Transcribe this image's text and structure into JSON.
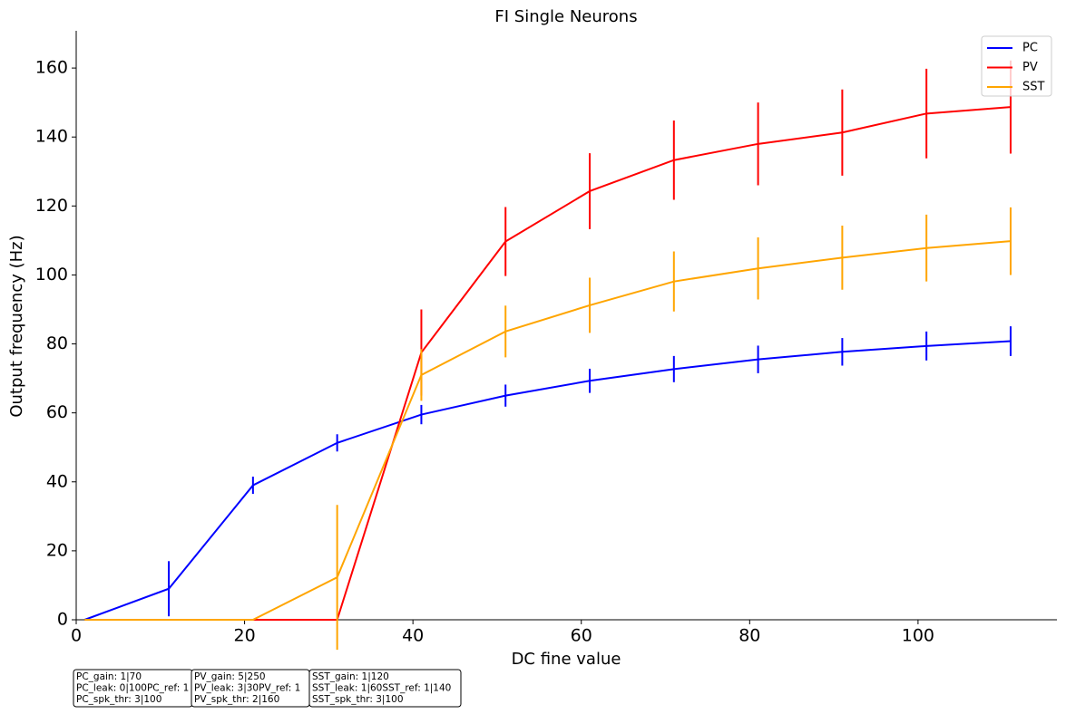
{
  "chart_data": {
    "type": "line",
    "title": "FI Single Neurons",
    "x_label": "DC fine value",
    "y_label": "Output frequency (Hz)",
    "x": [
      1,
      11,
      21,
      31,
      41,
      51,
      61,
      71,
      81,
      91,
      101,
      111
    ],
    "series": [
      {
        "name": "PC",
        "color": "#0000ff",
        "values": [
          0,
          9,
          39,
          51.3,
          59.5,
          65,
          69.3,
          72.7,
          75.5,
          77.7,
          79.4,
          80.8
        ],
        "errors": [
          0,
          8,
          2.5,
          2.5,
          2.8,
          3.2,
          3.5,
          3.8,
          4,
          4,
          4.2,
          4.3
        ]
      },
      {
        "name": "PV",
        "color": "#ff0000",
        "values": [
          0,
          0,
          0,
          0,
          77.5,
          109.7,
          124.3,
          133.3,
          138,
          141.3,
          146.8,
          148.7
        ],
        "errors": [
          0,
          0,
          0,
          0,
          12.5,
          10,
          11,
          11.5,
          12,
          12.5,
          13,
          13.5
        ]
      },
      {
        "name": "SST",
        "color": "#ffa500",
        "values": [
          0,
          0,
          0,
          12.3,
          71,
          83.6,
          91.2,
          98.1,
          101.9,
          105,
          107.8,
          109.8
        ],
        "errors": [
          0,
          0,
          0,
          21,
          7.5,
          7.5,
          8,
          8.7,
          9,
          9.3,
          9.7,
          9.8
        ]
      }
    ],
    "xlim": [
      0,
      116.5
    ],
    "xticks": [
      0,
      20,
      40,
      60,
      80,
      100
    ],
    "ylim": [
      0,
      170.8
    ],
    "yticks": [
      0,
      20,
      40,
      60,
      80,
      100,
      120,
      140,
      160
    ],
    "grid": false,
    "legend": "upper right",
    "annotations": [
      [
        "PC_gain: 1|70",
        "PC_leak: 0|100PC_ref: 1",
        "PC_spk_thr: 3|100"
      ],
      [
        "PV_gain: 5|250",
        "PV_leak: 3|30PV_ref: 1",
        "PV_spk_thr: 2|160"
      ],
      [
        "SST_gain: 1|120",
        "SST_leak: 1|60SST_ref: 1|140",
        "SST_spk_thr: 3|100"
      ]
    ]
  }
}
